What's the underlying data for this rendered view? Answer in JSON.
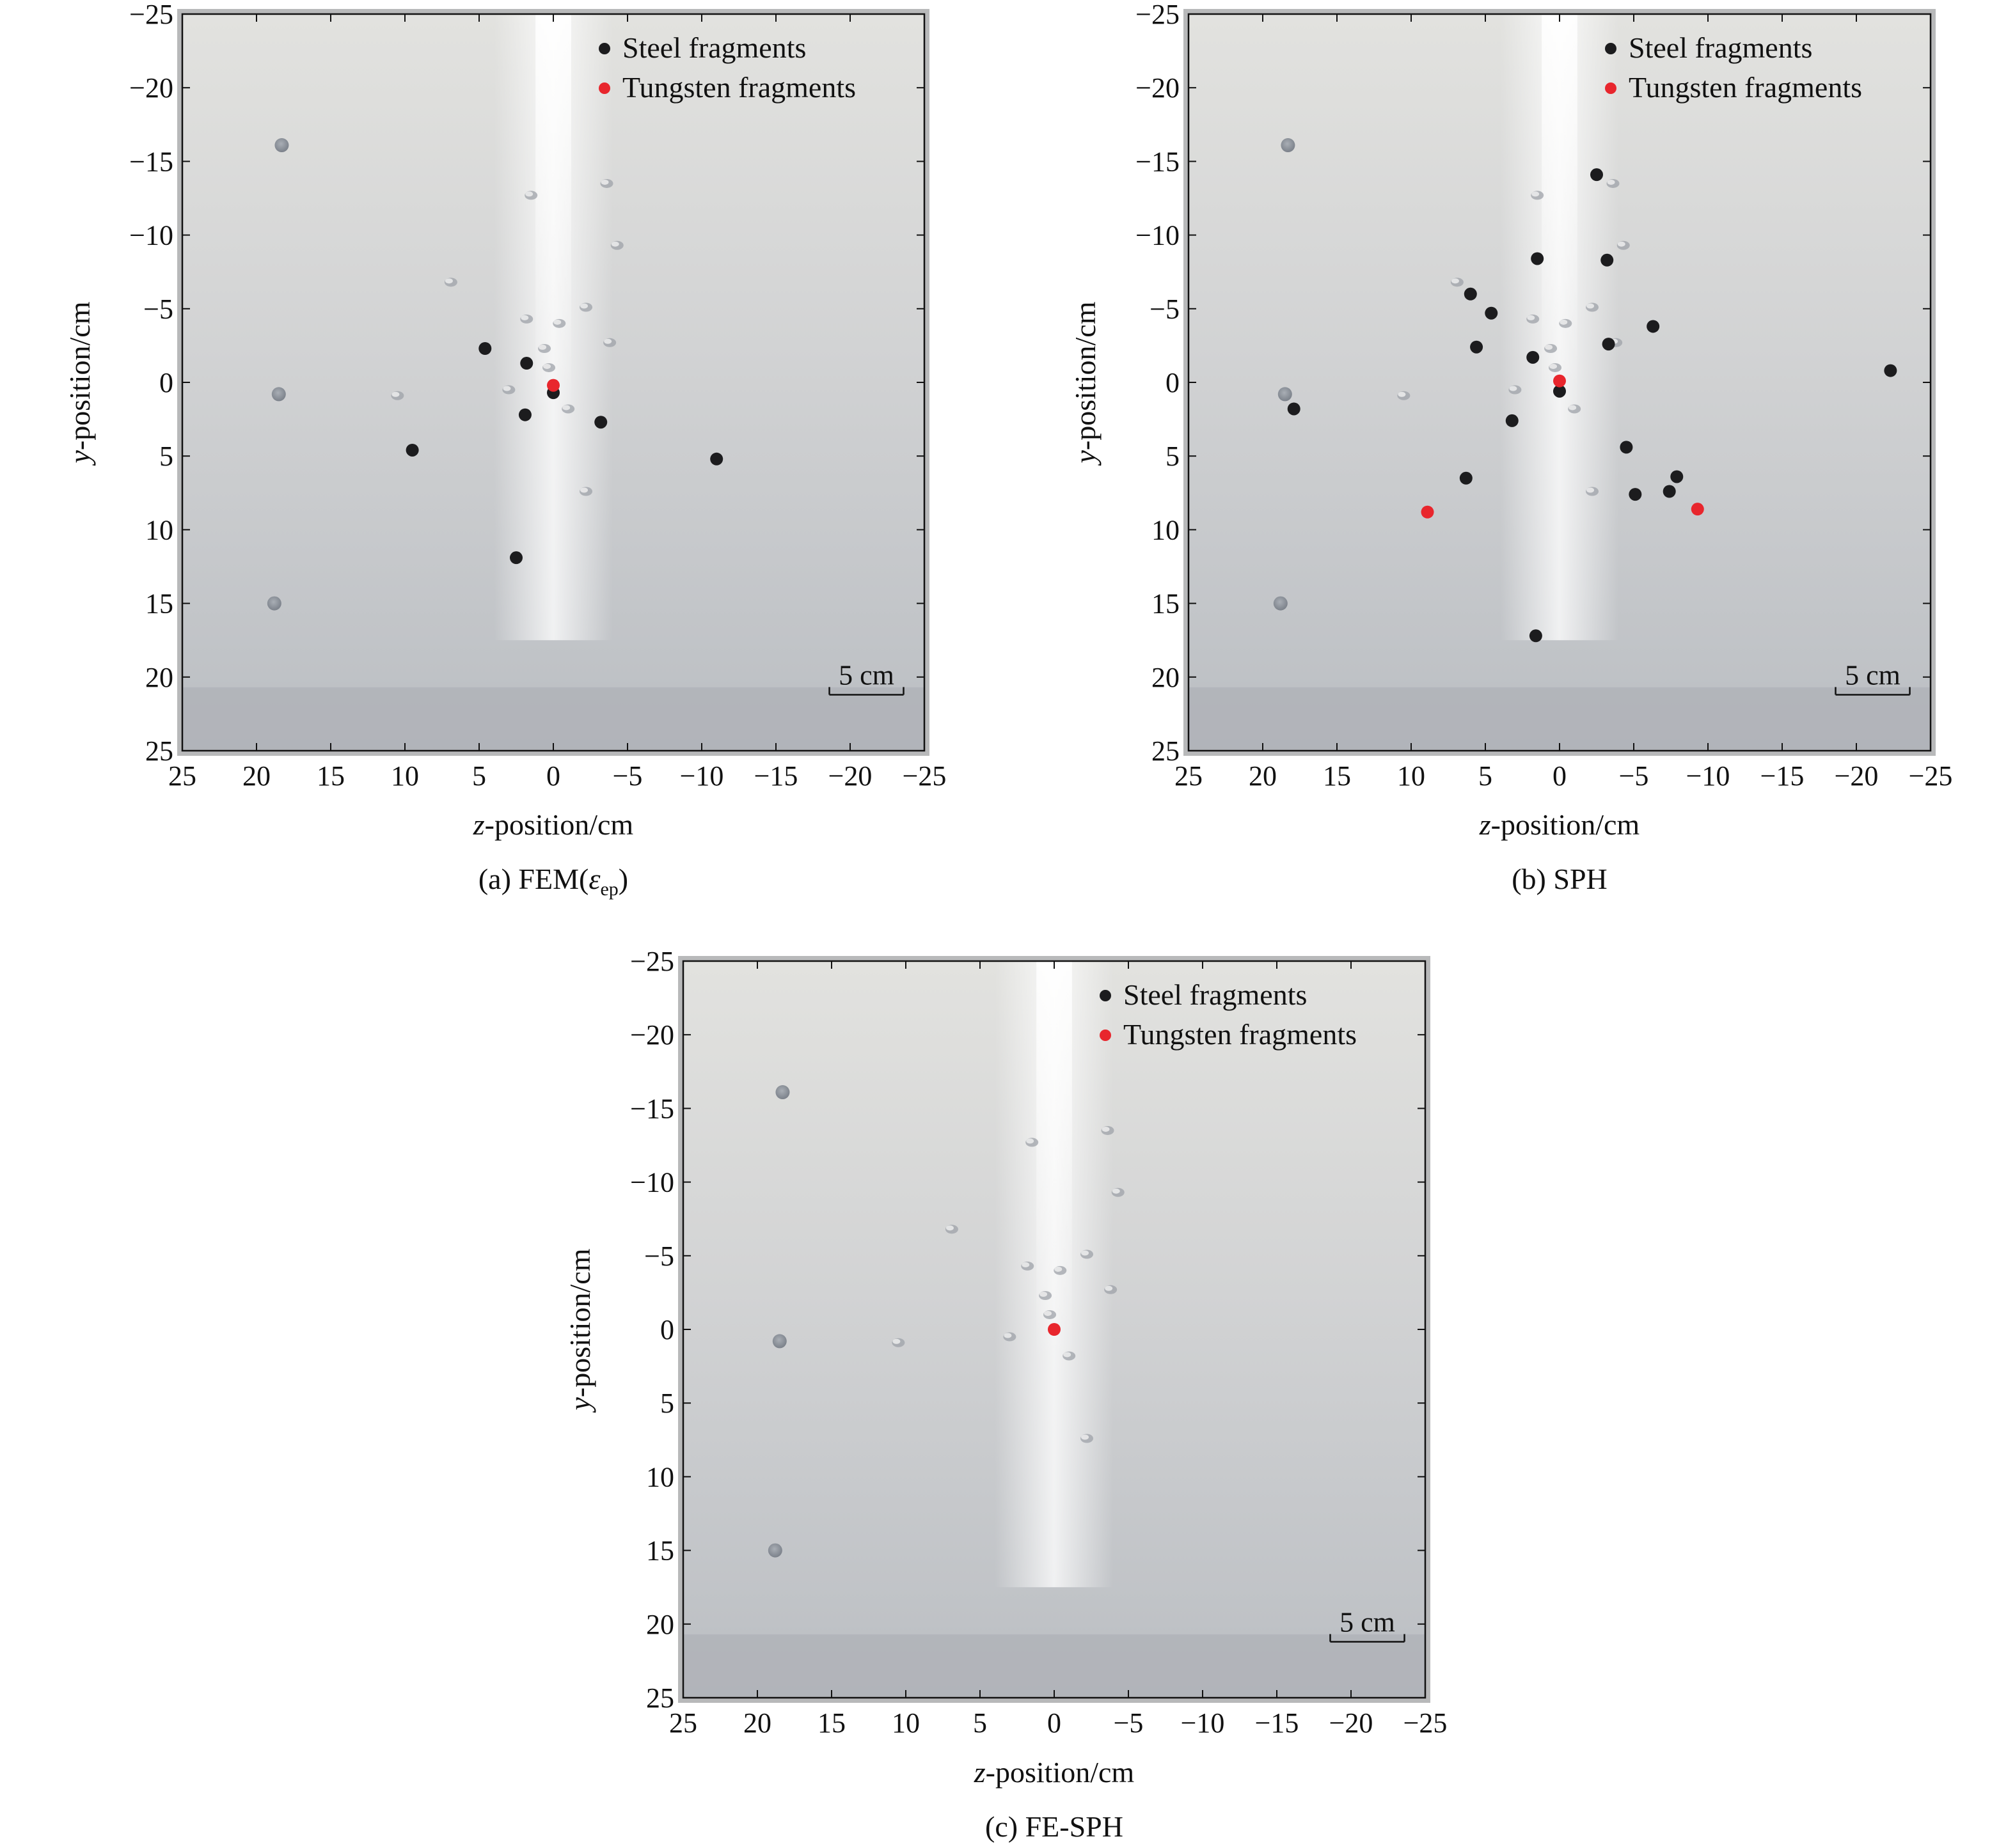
{
  "legend": {
    "steel": "Steel fragments",
    "tungsten": "Tungsten fragments"
  },
  "colors": {
    "steel": "#1c1c1e",
    "tungsten": "#e8262d",
    "plate_light": "#e6e6e3",
    "plate_mid": "#c9cacb",
    "plate_dark": "#b2b5ba",
    "hole": "#8e949c"
  },
  "scale_bar": "5 cm",
  "xlabel_var": "z",
  "xlabel_rest": "-position/cm",
  "ylabel_var": "y",
  "ylabel_rest": "-position/cm",
  "chart_data": [
    {
      "id": "a",
      "type": "scatter",
      "caption_prefix": "(a) FEM(",
      "caption_symbol": "ε",
      "caption_sub": "ep",
      "caption_suffix": ")",
      "xlim": [
        25,
        -25
      ],
      "ylim": [
        -25,
        25
      ],
      "xticks": [
        25,
        20,
        15,
        10,
        5,
        0,
        -5,
        -10,
        -15,
        -20,
        -25
      ],
      "yticks": [
        -25,
        -20,
        -15,
        -10,
        -5,
        0,
        5,
        10,
        15,
        20,
        25
      ],
      "xticklabels": [
        "25",
        "20",
        "15",
        "10",
        "5",
        "0",
        "−5",
        "−10",
        "−15",
        "−20",
        "−25"
      ],
      "yticklabels": [
        "−25",
        "−20",
        "−15",
        "−10",
        "−5",
        "0",
        "5",
        "10",
        "15",
        "20",
        "25"
      ],
      "series": [
        {
          "name": "Steel fragments",
          "points": [
            [
              4.6,
              -2.3
            ],
            [
              1.8,
              -1.3
            ],
            [
              1.9,
              2.2
            ],
            [
              0.0,
              0.7
            ],
            [
              -3.2,
              2.7
            ],
            [
              9.5,
              4.6
            ],
            [
              -11.0,
              5.2
            ],
            [
              2.5,
              11.9
            ]
          ]
        },
        {
          "name": "Tungsten fragments",
          "points": [
            [
              0.0,
              0.2
            ]
          ]
        }
      ]
    },
    {
      "id": "b",
      "type": "scatter",
      "caption": "(b) SPH",
      "xlim": [
        25,
        -25
      ],
      "ylim": [
        -25,
        25
      ],
      "xticks": [
        25,
        20,
        15,
        10,
        5,
        0,
        -5,
        -10,
        -15,
        -20,
        -25
      ],
      "yticks": [
        -25,
        -20,
        -15,
        -10,
        -5,
        0,
        5,
        10,
        15,
        20,
        25
      ],
      "xticklabels": [
        "25",
        "20",
        "15",
        "10",
        "5",
        "0",
        "−5",
        "−10",
        "−15",
        "−20",
        "−25"
      ],
      "yticklabels": [
        "−25",
        "−20",
        "−15",
        "−10",
        "−5",
        "0",
        "5",
        "10",
        "15",
        "20",
        "25"
      ],
      "series": [
        {
          "name": "Steel fragments",
          "points": [
            [
              -2.5,
              -14.1
            ],
            [
              1.5,
              -8.4
            ],
            [
              -3.2,
              -8.3
            ],
            [
              6.0,
              -6.0
            ],
            [
              4.6,
              -4.7
            ],
            [
              -6.3,
              -3.8
            ],
            [
              5.6,
              -2.4
            ],
            [
              -3.3,
              -2.6
            ],
            [
              1.8,
              -1.7
            ],
            [
              0.0,
              0.6
            ],
            [
              17.9,
              1.8
            ],
            [
              3.2,
              2.6
            ],
            [
              -4.5,
              4.4
            ],
            [
              6.3,
              6.5
            ],
            [
              -7.9,
              6.4
            ],
            [
              -5.1,
              7.6
            ],
            [
              -7.4,
              7.4
            ],
            [
              1.6,
              17.2
            ],
            [
              -22.3,
              -0.8
            ]
          ]
        },
        {
          "name": "Tungsten fragments",
          "points": [
            [
              0.0,
              -0.1
            ],
            [
              8.9,
              8.8
            ],
            [
              -9.3,
              8.6
            ]
          ]
        }
      ]
    },
    {
      "id": "c",
      "type": "scatter",
      "caption": "(c) FE-SPH",
      "xlim": [
        25,
        -25
      ],
      "ylim": [
        -25,
        25
      ],
      "xticks": [
        25,
        20,
        15,
        10,
        5,
        0,
        -5,
        -10,
        -15,
        -20,
        -25
      ],
      "yticks": [
        -25,
        -20,
        -15,
        -10,
        -5,
        0,
        5,
        10,
        15,
        20,
        25
      ],
      "xticklabels": [
        "25",
        "20",
        "15",
        "10",
        "5",
        "0",
        "−5",
        "−10",
        "−15",
        "−20",
        "−25"
      ],
      "yticklabels": [
        "−25",
        "−20",
        "−15",
        "−10",
        "−5",
        "0",
        "5",
        "10",
        "15",
        "20",
        "25"
      ],
      "series": [
        {
          "name": "Steel fragments",
          "points": []
        },
        {
          "name": "Tungsten fragments",
          "points": [
            [
              0.0,
              0.0
            ]
          ]
        }
      ]
    }
  ]
}
